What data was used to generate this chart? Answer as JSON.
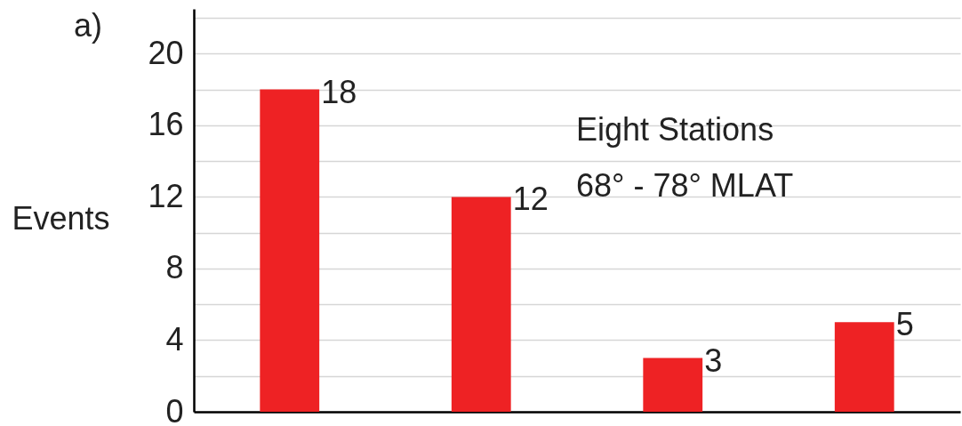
{
  "chart_data": {
    "type": "bar",
    "ylabel": "Events",
    "categories": [
      null,
      null,
      null,
      null,
      null
    ],
    "values": [
      18,
      12,
      null,
      3,
      5
    ],
    "color": "#ee2224",
    "value_labels": [
      "18",
      "12",
      null,
      "3",
      "5"
    ],
    "ylim": [
      0,
      22.5
    ],
    "yticks": [
      0,
      {
        "value": 2,
        "label": null
      },
      4,
      {
        "value": 6,
        "label": null
      },
      8,
      {
        "value": 10,
        "label": null
      },
      12,
      {
        "value": 14,
        "label": null
      },
      16,
      {
        "value": 18,
        "label": null
      },
      20,
      {
        "value": 22,
        "label": null
      }
    ],
    "grid": "y",
    "tick_labels": "y",
    "annotations": [
      "a)",
      "Eight Stations",
      "68° - 78° MLAT"
    ]
  }
}
